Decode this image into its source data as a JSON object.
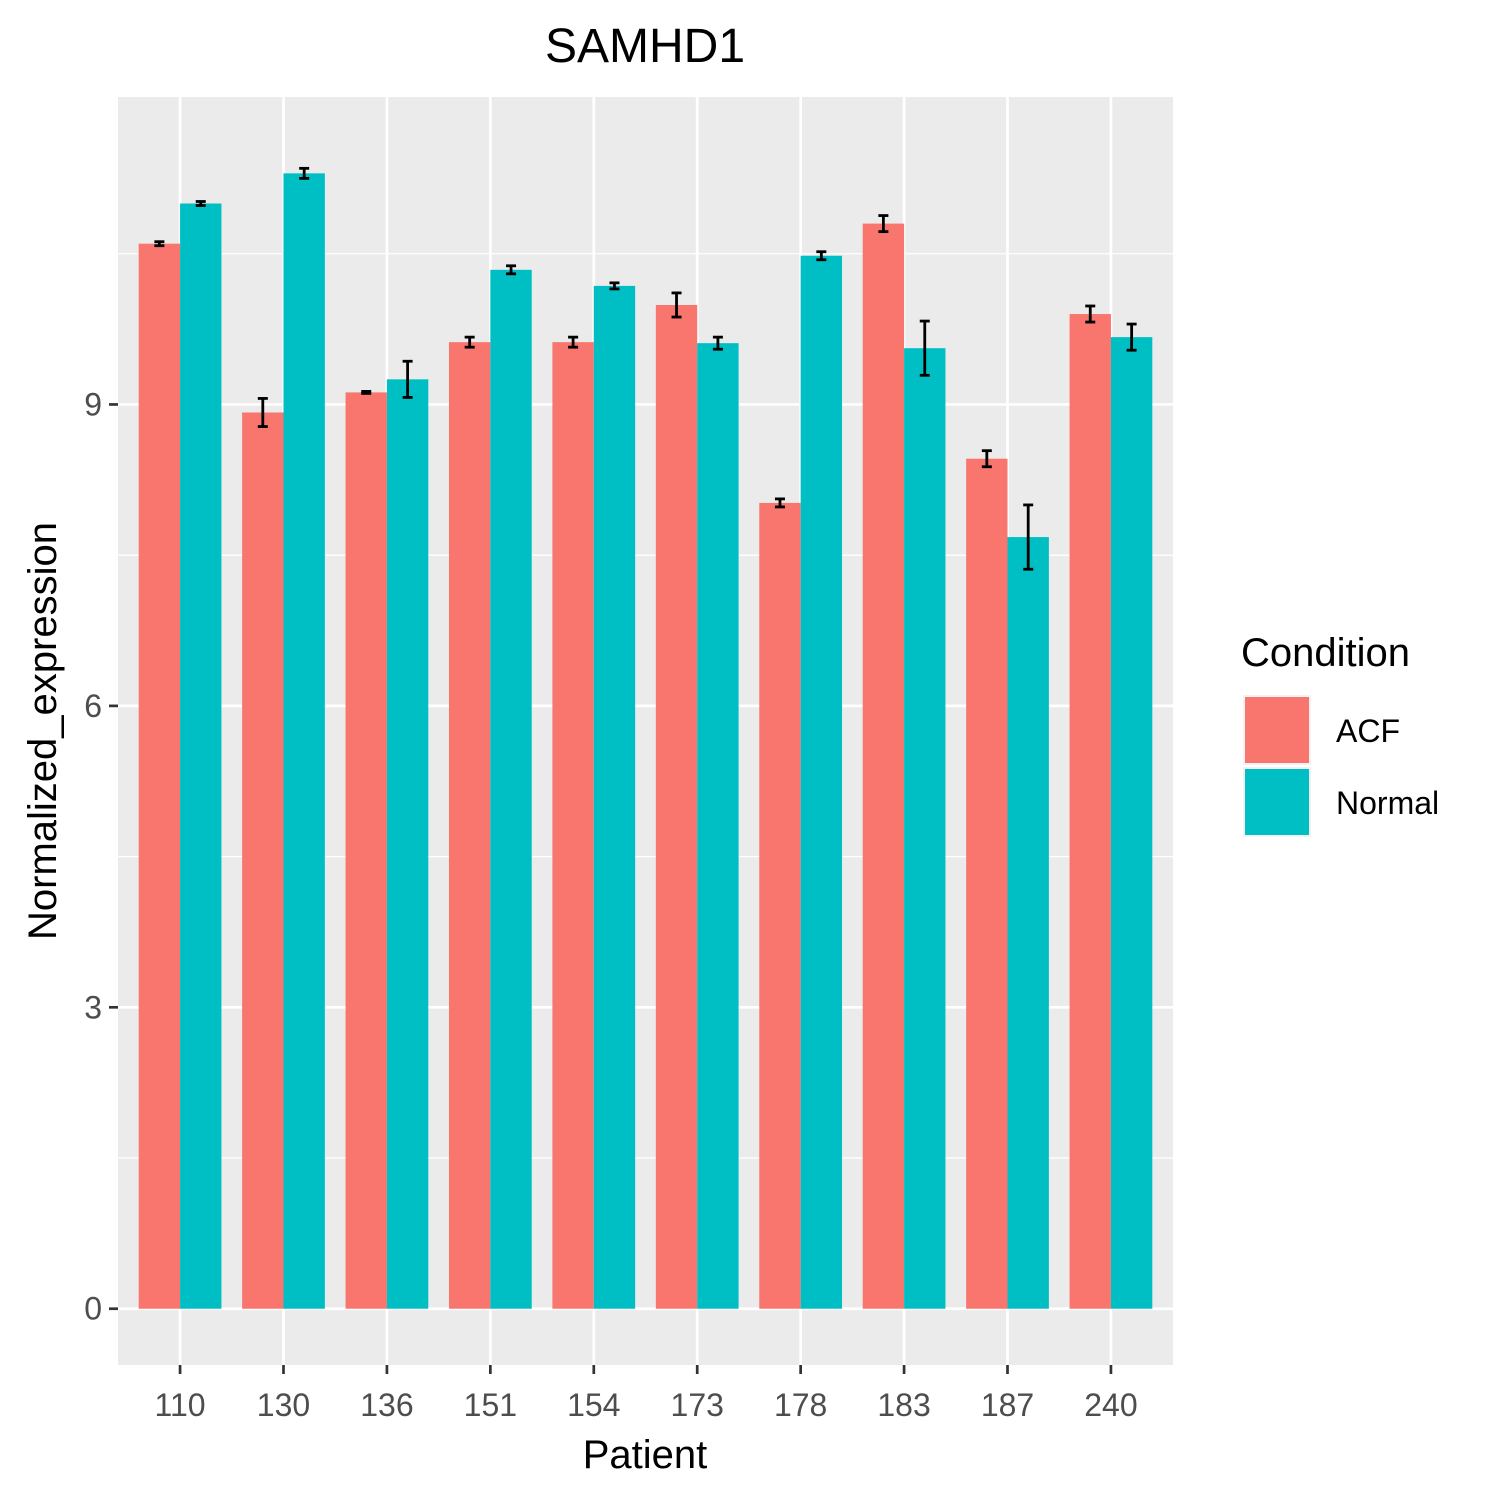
{
  "chart_data": {
    "type": "bar",
    "title": "SAMHD1",
    "xlabel": "Patient",
    "ylabel": "Normalized_expression",
    "categories": [
      "110",
      "130",
      "136",
      "151",
      "154",
      "173",
      "178",
      "183",
      "187",
      "240"
    ],
    "series": [
      {
        "name": "ACF",
        "color": "#F8766D",
        "values": [
          10.6,
          8.92,
          9.12,
          9.62,
          9.62,
          9.99,
          8.02,
          10.8,
          8.46,
          9.9
        ],
        "errors": [
          0.02,
          0.14,
          0.01,
          0.05,
          0.05,
          0.12,
          0.04,
          0.08,
          0.08,
          0.08
        ]
      },
      {
        "name": "Normal",
        "color": "#00BFC4",
        "values": [
          11.0,
          11.3,
          9.25,
          10.34,
          10.18,
          9.61,
          10.48,
          9.56,
          7.68,
          9.67
        ],
        "errors": [
          0.02,
          0.05,
          0.18,
          0.04,
          0.03,
          0.06,
          0.04,
          0.27,
          0.32,
          0.13
        ]
      }
    ],
    "yticks": [
      0,
      3,
      6,
      9
    ],
    "ylim": [
      -0.56,
      12.06
    ],
    "legend": {
      "title": "Condition",
      "position": "right"
    },
    "grid": true,
    "background": "#EBEBEB",
    "gridline_color": "#FFFFFF"
  }
}
